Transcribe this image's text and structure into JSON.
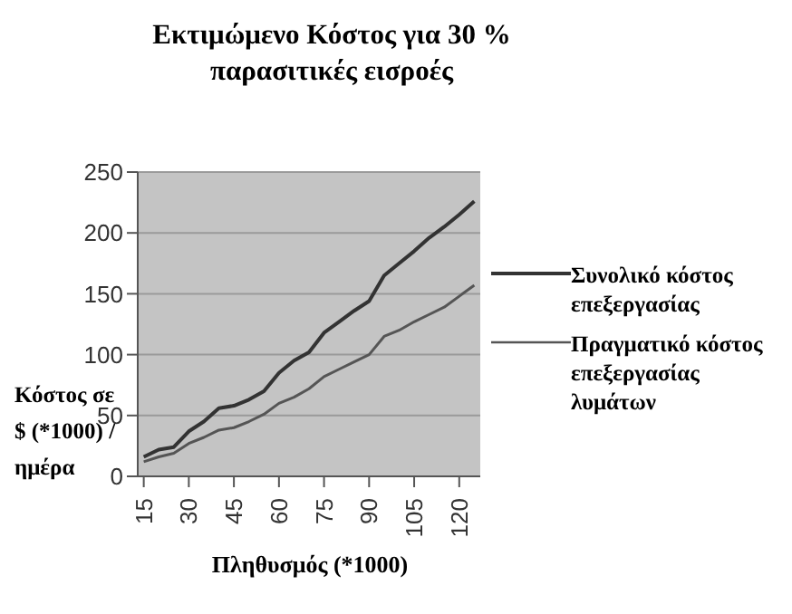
{
  "chart_data": {
    "type": "line",
    "title": "Εκτιμώμενο Κόστος για 30 % παρασιτικές εισροές",
    "xlabel": "Πληθυσμός (*1000)",
    "ylabel": "Κόστος σε $ (*1000) / ημέρα",
    "x": [
      15,
      20,
      25,
      30,
      35,
      40,
      45,
      50,
      55,
      60,
      65,
      70,
      75,
      80,
      85,
      90,
      95,
      100,
      105,
      110,
      115,
      120,
      125
    ],
    "series": [
      {
        "name": "Συνολικό κόστος επεξεργασίας",
        "color": "#333333",
        "values": [
          16,
          22,
          24,
          37,
          45,
          56,
          58,
          63,
          70,
          85,
          95,
          102,
          118,
          127,
          136,
          144,
          165,
          175,
          185,
          196,
          205,
          215,
          226
        ]
      },
      {
        "name": "Πραγματικό κόστος επεξεργασίας λυμάτων",
        "color": "#555555",
        "values": [
          12,
          16,
          19,
          27,
          32,
          38,
          40,
          45,
          51,
          60,
          65,
          72,
          82,
          88,
          94,
          100,
          115,
          120,
          127,
          133,
          139,
          148,
          157
        ]
      }
    ],
    "xlim": [
      13,
      127
    ],
    "xticks": [
      15,
      30,
      45,
      60,
      75,
      90,
      105,
      120
    ],
    "ylim": [
      0,
      250
    ],
    "yticks": [
      0,
      50,
      100,
      150,
      200,
      250
    ],
    "grid": "y",
    "legend": "right",
    "marker": "none",
    "line_style": "solid"
  }
}
